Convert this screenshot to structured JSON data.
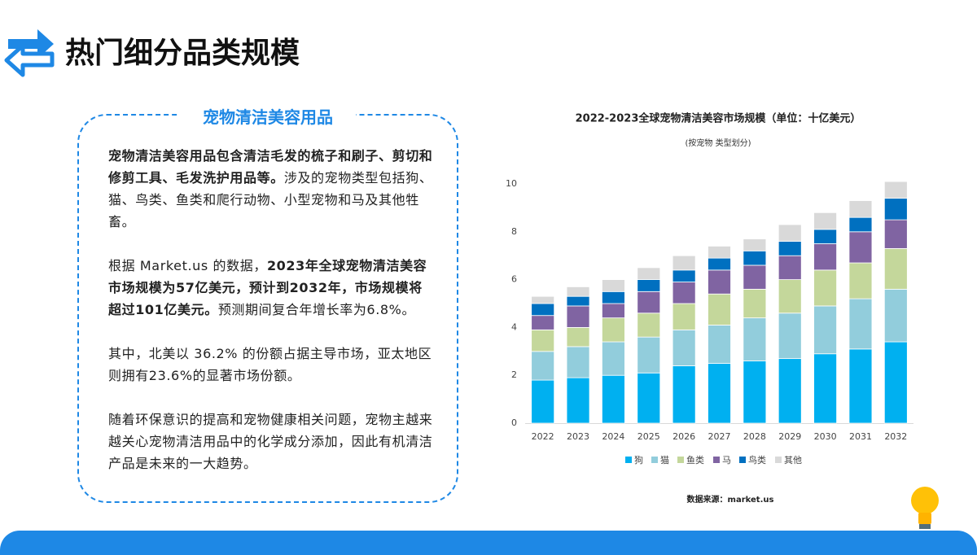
{
  "header": {
    "title": "热门细分品类规模"
  },
  "panel": {
    "heading": "宠物清洁美容用品",
    "paragraphs": [
      [
        {
          "text": "宠物清洁美容用品包含清洁毛发的梳子和刷子、剪切和修剪工具、毛发洗护用品等。",
          "bold": true
        },
        {
          "text": "涉及的宠物类型包括狗、猫、鸟类、鱼类和爬行动物、小型宠物和马及其他牲畜。",
          "bold": false
        }
      ],
      [
        {
          "text": "根据 Market.us 的数据，",
          "bold": false
        },
        {
          "text": "2023年全球宠物清洁美容市场规模为57亿美元，预计到2032年，市场规模将超过101亿美元。",
          "bold": true
        },
        {
          "text": "预测期间复合年增长率为6.8%。",
          "bold": false
        }
      ],
      [
        {
          "text": "其中，北美以 36.2% 的份额占据主导市场，亚太地区则拥有23.6%的显著市场份额。",
          "bold": false
        }
      ],
      [
        {
          "text": "随着环保意识的提高和宠物健康相关问题，宠物主越来越关心宠物清洁用品中的化学成分添加，因此有机清洁产品是未来的一大趋势。",
          "bold": false
        }
      ]
    ]
  },
  "chart_data": {
    "type": "stacked_bar",
    "title": "2022-2023全球宠物清洁美容市场规模（单位：十亿美元）",
    "subtitle": "(按宠物 类型划分)",
    "categories": [
      "2022",
      "2023",
      "2024",
      "2025",
      "2026",
      "2027",
      "2028",
      "2029",
      "2030",
      "2031",
      "2032"
    ],
    "series": [
      {
        "name": "狗",
        "color": "#00b0f0",
        "values": [
          1.8,
          1.9,
          2.0,
          2.1,
          2.4,
          2.5,
          2.6,
          2.7,
          2.9,
          3.1,
          3.4
        ]
      },
      {
        "name": "猫",
        "color": "#92cddc",
        "values": [
          1.2,
          1.3,
          1.4,
          1.5,
          1.5,
          1.6,
          1.8,
          1.9,
          2.0,
          2.1,
          2.2
        ]
      },
      {
        "name": "鱼类",
        "color": "#c4d79b",
        "values": [
          0.9,
          0.8,
          1.0,
          1.0,
          1.1,
          1.3,
          1.2,
          1.4,
          1.5,
          1.5,
          1.7
        ]
      },
      {
        "name": "马",
        "color": "#8064a2",
        "values": [
          0.6,
          0.9,
          0.6,
          0.9,
          0.9,
          1.0,
          1.0,
          1.0,
          1.1,
          1.3,
          1.2
        ]
      },
      {
        "name": "鸟类",
        "color": "#0070c0",
        "values": [
          0.5,
          0.4,
          0.5,
          0.5,
          0.5,
          0.5,
          0.6,
          0.6,
          0.6,
          0.6,
          0.9
        ]
      },
      {
        "name": "其他",
        "color": "#d9d9d9",
        "values": [
          0.3,
          0.4,
          0.5,
          0.5,
          0.6,
          0.5,
          0.5,
          0.7,
          0.7,
          0.7,
          0.7
        ]
      }
    ],
    "ylim": [
      0,
      10
    ],
    "yticks": [
      0,
      2,
      4,
      6,
      8,
      10
    ],
    "grid": false,
    "source": "数据来源：market.us"
  }
}
